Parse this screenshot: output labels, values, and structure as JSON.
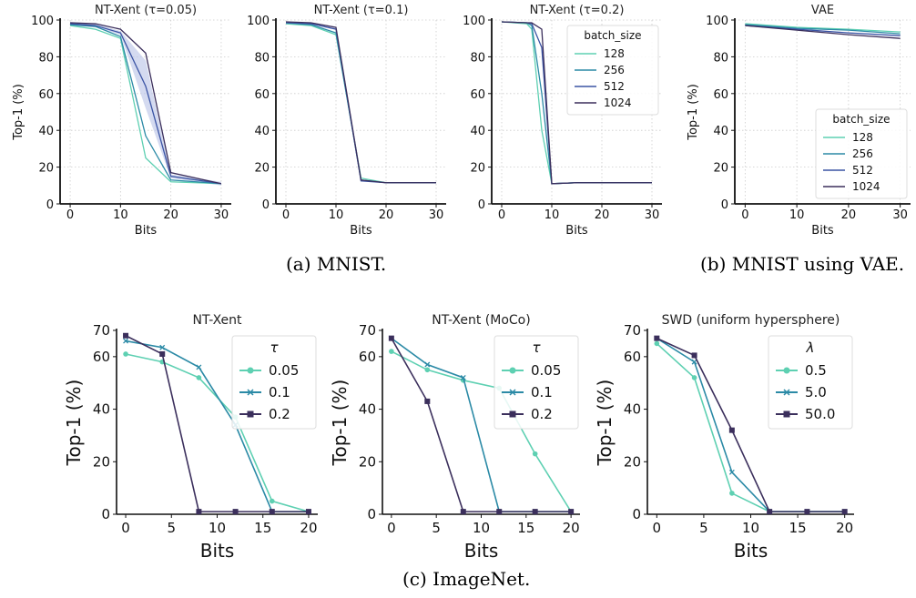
{
  "captions": {
    "a": "(a) MNIST.",
    "b": "(b) MNIST using VAE.",
    "c": "(c) ImageNet."
  },
  "colors": {
    "c128": "#5ed0b2",
    "c256": "#2b8aa6",
    "c512": "#3a53a4",
    "c1024": "#3b2f5c",
    "band": "#b8c2e6",
    "grid": "#cccccc"
  },
  "chart_data": [
    {
      "type": "line",
      "title": "NT-Xent (τ=0.05)",
      "xlabel": "Bits",
      "ylabel": "Top-1 (%)",
      "xlim": [
        -2,
        32
      ],
      "ylim": [
        0,
        100
      ],
      "xticks": [
        0,
        10,
        20,
        30
      ],
      "yticks": [
        0,
        20,
        40,
        60,
        80,
        100
      ],
      "grid": true,
      "x": [
        0,
        5,
        10,
        15,
        20,
        30
      ],
      "series": [
        {
          "name": "128",
          "values": [
            97,
            95,
            90,
            25,
            12,
            11
          ]
        },
        {
          "name": "256",
          "values": [
            97.5,
            96.5,
            91,
            37,
            13,
            11
          ]
        },
        {
          "name": "512",
          "values": [
            98,
            97,
            93,
            64,
            15,
            11
          ]
        },
        {
          "name": "1024",
          "values": [
            98.5,
            98,
            95,
            82,
            17,
            11
          ]
        }
      ]
    },
    {
      "type": "line",
      "title": "NT-Xent (τ=0.1)",
      "xlabel": "Bits",
      "ylabel": "",
      "xlim": [
        -2,
        32
      ],
      "ylim": [
        0,
        100
      ],
      "xticks": [
        0,
        10,
        20,
        30
      ],
      "yticks": [
        0,
        20,
        40,
        60,
        80,
        100
      ],
      "grid": true,
      "x": [
        0,
        5,
        10,
        15,
        20,
        30
      ],
      "series": [
        {
          "name": "128",
          "values": [
            98,
            97,
            92,
            14,
            11.5,
            11.5
          ]
        },
        {
          "name": "256",
          "values": [
            98.5,
            97.5,
            93,
            13,
            11.5,
            11.5
          ]
        },
        {
          "name": "512",
          "values": [
            98.5,
            98,
            95,
            12.5,
            11.5,
            11.5
          ]
        },
        {
          "name": "1024",
          "values": [
            99,
            98.5,
            96,
            13,
            11.5,
            11.5
          ]
        }
      ]
    },
    {
      "type": "line",
      "title": "NT-Xent (τ=0.2)",
      "xlabel": "Bits",
      "ylabel": "",
      "xlim": [
        -2,
        32
      ],
      "ylim": [
        0,
        100
      ],
      "xticks": [
        0,
        10,
        20,
        30
      ],
      "yticks": [
        0,
        20,
        40,
        60,
        80,
        100
      ],
      "grid": true,
      "x": [
        0,
        5,
        6,
        8,
        10,
        15,
        20,
        30
      ],
      "legend": {
        "title": "batch_size",
        "position": "top-right"
      },
      "series": [
        {
          "name": "128",
          "values": [
            99,
            98,
            95,
            40,
            11,
            11.5,
            11.5,
            11.5
          ]
        },
        {
          "name": "256",
          "values": [
            99,
            98.5,
            97,
            60,
            11,
            11.5,
            11.5,
            11.5
          ]
        },
        {
          "name": "512",
          "values": [
            99,
            98.5,
            98,
            85,
            11,
            11.5,
            11.5,
            11.5
          ]
        },
        {
          "name": "1024",
          "values": [
            99,
            98.5,
            98.5,
            95,
            11,
            11.5,
            11.5,
            11.5
          ]
        }
      ]
    },
    {
      "type": "line",
      "title": "VAE",
      "xlabel": "Bits",
      "ylabel": "Top-1 (%)",
      "xlim": [
        -2,
        32
      ],
      "ylim": [
        0,
        100
      ],
      "xticks": [
        0,
        10,
        20,
        30
      ],
      "yticks": [
        0,
        20,
        40,
        60,
        80,
        100
      ],
      "grid": true,
      "x": [
        0,
        10,
        20,
        30
      ],
      "legend": {
        "title": "batch_size",
        "position": "bottom-right"
      },
      "series": [
        {
          "name": "128",
          "values": [
            98,
            96,
            95,
            93.5
          ]
        },
        {
          "name": "256",
          "values": [
            97.5,
            95.5,
            94.5,
            92.5
          ]
        },
        {
          "name": "512",
          "values": [
            97,
            95,
            93,
            91.5
          ]
        },
        {
          "name": "1024",
          "values": [
            97,
            94.5,
            92,
            90
          ]
        }
      ]
    },
    {
      "type": "line",
      "title": "NT-Xent",
      "xlabel": "Bits",
      "ylabel": "Top-1 (%)",
      "xlim": [
        -1,
        21
      ],
      "ylim": [
        0,
        70
      ],
      "xticks": [
        0,
        5,
        10,
        15,
        20
      ],
      "yticks": [
        0,
        20,
        40,
        60,
        70
      ],
      "x": [
        0,
        4,
        8,
        12,
        16,
        20
      ],
      "legend": {
        "title": "τ",
        "position": "top-right"
      },
      "series": [
        {
          "name": "0.05",
          "marker": "circle",
          "values": [
            61,
            58,
            52,
            37,
            5,
            1
          ]
        },
        {
          "name": "0.1",
          "marker": "x",
          "values": [
            66,
            63.5,
            56,
            34,
            1,
            1
          ]
        },
        {
          "name": "0.2",
          "marker": "square",
          "values": [
            68,
            61,
            1,
            1,
            1,
            1
          ]
        }
      ]
    },
    {
      "type": "line",
      "title": "NT-Xent (MoCo)",
      "xlabel": "Bits",
      "ylabel": "Top-1 (%)",
      "xlim": [
        -1,
        21
      ],
      "ylim": [
        0,
        70
      ],
      "xticks": [
        0,
        5,
        10,
        15,
        20
      ],
      "yticks": [
        0,
        20,
        40,
        60,
        70
      ],
      "x": [
        0,
        4,
        8,
        12,
        16,
        20
      ],
      "legend": {
        "title": "τ",
        "position": "top-right"
      },
      "series": [
        {
          "name": "0.05",
          "marker": "circle",
          "values": [
            62,
            55,
            51,
            48,
            23,
            1
          ]
        },
        {
          "name": "0.1",
          "marker": "x",
          "values": [
            67,
            57,
            52,
            1,
            1,
            1
          ]
        },
        {
          "name": "0.2",
          "marker": "square",
          "values": [
            67,
            43,
            1,
            1,
            1,
            1
          ]
        }
      ]
    },
    {
      "type": "line",
      "title": "SWD (uniform hypersphere)",
      "xlabel": "Bits",
      "ylabel": "Top-1 (%)",
      "xlim": [
        -1,
        21
      ],
      "ylim": [
        0,
        70
      ],
      "xticks": [
        0,
        5,
        10,
        15,
        20
      ],
      "yticks": [
        0,
        20,
        40,
        60,
        70
      ],
      "x": [
        0,
        4,
        8,
        12,
        16,
        20
      ],
      "legend": {
        "title": "λ",
        "position": "top-right"
      },
      "series": [
        {
          "name": "0.5",
          "marker": "circle",
          "values": [
            65,
            52,
            8,
            1,
            1,
            1
          ]
        },
        {
          "name": "5.0",
          "marker": "x",
          "values": [
            67,
            58,
            16,
            1,
            1,
            1
          ]
        },
        {
          "name": "50.0",
          "marker": "square",
          "values": [
            67,
            60.5,
            32,
            1,
            1,
            1
          ]
        }
      ]
    }
  ]
}
